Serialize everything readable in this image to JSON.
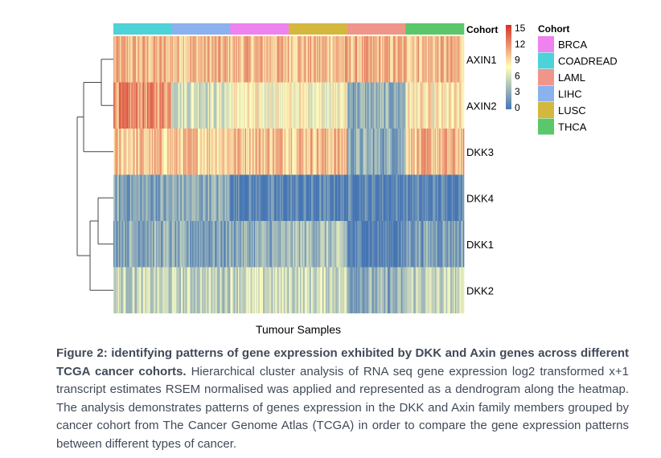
{
  "chart_data": {
    "type": "heatmap",
    "xlabel": "Tumour Samples",
    "genes": [
      "AXIN1",
      "AXIN2",
      "DKK3",
      "DKK4",
      "DKK1",
      "DKK2"
    ],
    "cohort_annotation_label": "Cohort",
    "cohorts": [
      {
        "name": "BRCA",
        "color": "#ee82ee"
      },
      {
        "name": "COADREAD",
        "color": "#4dd2d8"
      },
      {
        "name": "LAML",
        "color": "#f0958a"
      },
      {
        "name": "LIHC",
        "color": "#8bb1ee"
      },
      {
        "name": "LUSC",
        "color": "#d4b83e"
      },
      {
        "name": "THCA",
        "color": "#5ac76a"
      }
    ],
    "cohort_order_on_x": [
      "COADREAD",
      "LIHC",
      "BRCA",
      "LUSC",
      "LAML",
      "THCA"
    ],
    "color_scale": {
      "ticks": [
        15,
        12,
        9,
        6,
        3,
        0
      ],
      "min": 0,
      "max": 15,
      "low_color": "#4575b4",
      "mid_color": "#ffffbf",
      "high_color": "#d73027"
    },
    "approx_mean_expression": {
      "AXIN1": {
        "COADREAD": 10,
        "LIHC": 10,
        "BRCA": 10,
        "LUSC": 10,
        "LAML": 10,
        "THCA": 10
      },
      "AXIN2": {
        "COADREAD": 11.5,
        "LIHC": 6,
        "BRCA": 7.5,
        "LUSC": 7.5,
        "LAML": 3,
        "THCA": 8
      },
      "DKK3": {
        "COADREAD": 9.5,
        "LIHC": 9.5,
        "BRCA": 10,
        "LUSC": 10,
        "LAML": 3,
        "THCA": 10
      },
      "DKK4": {
        "COADREAD": 2.5,
        "LIHC": 3,
        "BRCA": 0.5,
        "LUSC": 0.5,
        "LAML": 0.5,
        "THCA": 0.5
      },
      "DKK1": {
        "COADREAD": 3,
        "LIHC": 2.5,
        "BRCA": 3,
        "LUSC": 4,
        "LAML": 0.5,
        "THCA": 2.5
      },
      "DKK2": {
        "COADREAD": 5,
        "LIHC": 5,
        "BRCA": 5.5,
        "LUSC": 5.5,
        "LAML": 3,
        "THCA": 5
      }
    },
    "legend_position": "right"
  },
  "caption": {
    "bold": "Figure 2: identifying patterns of gene expression exhibited by DKK and Axin genes across different TCGA cancer cohorts.",
    "text": " Hierarchical cluster analysis of RNA seq gene expression log2 transformed x+1 transcript estimates RSEM normalised was applied and represented as a dendrogram along the heatmap. The analysis demonstrates patterns of genes expression in the DKK and Axin family members grouped by cancer cohort from The Cancer Genome Atlas (TCGA) in order to compare the gene expression patterns between different types of cancer."
  }
}
